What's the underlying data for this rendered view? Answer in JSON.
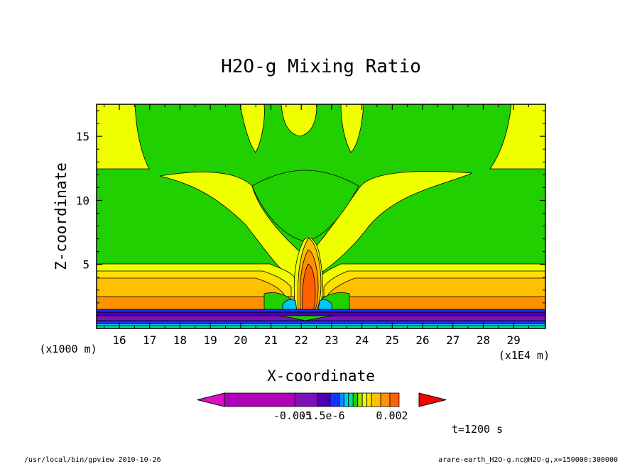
{
  "chart_data": {
    "type": "heatmap",
    "title": "H2O-g Mixing Ratio",
    "xlabel": "X-coordinate",
    "ylabel": "Z-coordinate",
    "x_ticks": [
      "16",
      "17",
      "18",
      "19",
      "20",
      "21",
      "22",
      "23",
      "24",
      "25",
      "26",
      "27",
      "28",
      "29"
    ],
    "y_ticks": [
      "5",
      "10",
      "15"
    ],
    "x_units": "(x1E4 m)",
    "y_units": "(x1000 m)",
    "xlim": [
      15.25,
      30.05
    ],
    "ylim": [
      0,
      17.5
    ],
    "colorbar": {
      "colors": [
        "#dd10c8",
        "#b000b8",
        "#8010b8",
        "#4800b0",
        "#1830ff",
        "#0090ff",
        "#00c8ff",
        "#00e090",
        "#20d000",
        "#a0e010",
        "#f0ff00",
        "#ffe000",
        "#ffc000",
        "#ff9000",
        "#ff6000",
        "#ff0000"
      ],
      "labels": [
        "-0.005",
        "-1.5e-6",
        "0.002"
      ]
    },
    "annotation": "t=1200 s"
  },
  "footer": {
    "left": "/usr/local/bin/gpview  2010-10-26",
    "right": "arare-earth_H2O-g.nc@H2O-g,x=150000:300000"
  }
}
